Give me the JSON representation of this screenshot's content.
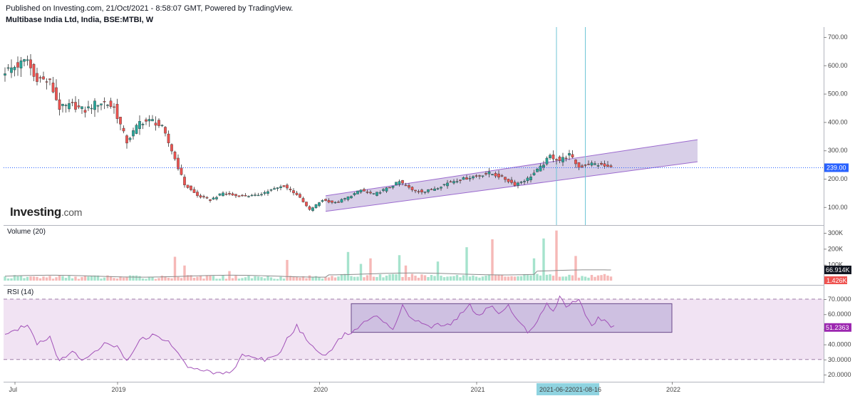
{
  "header": {
    "published": "Published on Investing.com, 21/Oct/2021 - 8:58:07 GMT, Powered by TradingView.",
    "symbol": "Multibase India Ltd, India, BSE:MTBI, W"
  },
  "logo": {
    "brand": "Investing",
    "suffix": ".com"
  },
  "panes": {
    "volume_label": "Volume (20)",
    "rsi_label": "RSI (14)"
  },
  "colors": {
    "up": "#26a69a",
    "down": "#ef5350",
    "channel_fill": "#b8a8d6",
    "channel_line": "#9c6bcf",
    "rsi_band": "#f1e3f3",
    "rsi_line": "#a252b8",
    "cursor_line": "#70c6d6",
    "price_line": "#2962ff",
    "volume_up": "#a6e3cd",
    "volume_down": "#f6b8b7",
    "volume_ma": "#8c8c8c"
  },
  "chart_data": [
    {
      "type": "candlestick",
      "title": "Multibase India Ltd, India, BSE:MTBI, W",
      "ylim": [
        60,
        720
      ],
      "y_ticks": [
        "700.00",
        "600.00",
        "500.00",
        "400.00",
        "300.00",
        "200.00",
        "100.00"
      ],
      "x_tick_labels": [
        "Jul",
        "2019",
        "2020",
        "2021",
        "2022"
      ],
      "last_price": "239.00",
      "anchors": [
        {
          "t": 0,
          "v": 580
        },
        {
          "t": 4,
          "v": 600
        },
        {
          "t": 7,
          "v": 620
        },
        {
          "t": 9,
          "v": 560
        },
        {
          "t": 14,
          "v": 540
        },
        {
          "t": 17,
          "v": 450
        },
        {
          "t": 21,
          "v": 460
        },
        {
          "t": 25,
          "v": 440
        },
        {
          "t": 28,
          "v": 465
        },
        {
          "t": 31,
          "v": 470
        },
        {
          "t": 34,
          "v": 450
        },
        {
          "t": 38,
          "v": 330
        },
        {
          "t": 42,
          "v": 400
        },
        {
          "t": 46,
          "v": 405
        },
        {
          "t": 49,
          "v": 380
        },
        {
          "t": 52,
          "v": 300
        },
        {
          "t": 56,
          "v": 180
        },
        {
          "t": 60,
          "v": 140
        },
        {
          "t": 64,
          "v": 125
        },
        {
          "t": 68,
          "v": 150
        },
        {
          "t": 72,
          "v": 140
        },
        {
          "t": 78,
          "v": 140
        },
        {
          "t": 83,
          "v": 160
        },
        {
          "t": 87,
          "v": 175
        },
        {
          "t": 91,
          "v": 145
        },
        {
          "t": 95,
          "v": 90
        },
        {
          "t": 99,
          "v": 125
        },
        {
          "t": 103,
          "v": 115
        },
        {
          "t": 107,
          "v": 135
        },
        {
          "t": 111,
          "v": 160
        },
        {
          "t": 115,
          "v": 145
        },
        {
          "t": 119,
          "v": 165
        },
        {
          "t": 123,
          "v": 190
        },
        {
          "t": 127,
          "v": 160
        },
        {
          "t": 131,
          "v": 155
        },
        {
          "t": 135,
          "v": 170
        },
        {
          "t": 139,
          "v": 190
        },
        {
          "t": 143,
          "v": 200
        },
        {
          "t": 147,
          "v": 210
        },
        {
          "t": 151,
          "v": 220
        },
        {
          "t": 155,
          "v": 205
        },
        {
          "t": 159,
          "v": 180
        },
        {
          "t": 163,
          "v": 200
        },
        {
          "t": 167,
          "v": 240
        },
        {
          "t": 170,
          "v": 280
        },
        {
          "t": 173,
          "v": 265
        },
        {
          "t": 176,
          "v": 285
        },
        {
          "t": 179,
          "v": 240
        },
        {
          "t": 182,
          "v": 255
        },
        {
          "t": 185,
          "v": 250
        },
        {
          "t": 189,
          "v": 239
        }
      ],
      "channel": {
        "lower": {
          "start": {
            "t": 100,
            "v": 85
          },
          "end": {
            "t": 216,
            "v": 260
          }
        },
        "upper": {
          "start": {
            "t": 100,
            "v": 140
          },
          "end": {
            "t": 216,
            "v": 338
          }
        }
      },
      "vertical_markers": [
        "2021-06-2",
        "2021-08-16"
      ]
    },
    {
      "type": "bar",
      "title": "Volume (20)",
      "y_ticks": [
        "300K",
        "200K",
        "100K"
      ],
      "ylim": [
        0,
        330000
      ],
      "ma_value": "66.914K",
      "last_volume": "1.426K",
      "spikes": [
        {
          "t": 53,
          "v": 150000
        },
        {
          "t": 56,
          "v": 95000
        },
        {
          "t": 70,
          "v": 60000
        },
        {
          "t": 88,
          "v": 130000
        },
        {
          "t": 107,
          "v": 180000
        },
        {
          "t": 111,
          "v": 105000
        },
        {
          "t": 114,
          "v": 140000
        },
        {
          "t": 123,
          "v": 160000
        },
        {
          "t": 125,
          "v": 95000
        },
        {
          "t": 135,
          "v": 120000
        },
        {
          "t": 144,
          "v": 210000
        },
        {
          "t": 152,
          "v": 260000
        },
        {
          "t": 165,
          "v": 140000
        },
        {
          "t": 168,
          "v": 265000
        },
        {
          "t": 172,
          "v": 315000
        },
        {
          "t": 178,
          "v": 155000
        }
      ]
    },
    {
      "type": "line",
      "title": "RSI (14)",
      "ylim": [
        18,
        76
      ],
      "y_ticks": [
        "70.0000",
        "60.0000",
        "50.0000",
        "40.0000",
        "30.0000",
        "20.0000"
      ],
      "band": [
        30,
        70
      ],
      "last_value": "51.2363",
      "highlight_box": {
        "start": {
          "t": 108,
          "v": 48
        },
        "end": {
          "t": 208,
          "v": 67
        }
      },
      "anchors": [
        {
          "t": 0,
          "v": 47
        },
        {
          "t": 4,
          "v": 50
        },
        {
          "t": 7,
          "v": 54
        },
        {
          "t": 10,
          "v": 41
        },
        {
          "t": 14,
          "v": 45
        },
        {
          "t": 17,
          "v": 29
        },
        {
          "t": 21,
          "v": 35
        },
        {
          "t": 24,
          "v": 30
        },
        {
          "t": 28,
          "v": 36
        },
        {
          "t": 31,
          "v": 40
        },
        {
          "t": 35,
          "v": 38
        },
        {
          "t": 38,
          "v": 30
        },
        {
          "t": 42,
          "v": 43
        },
        {
          "t": 46,
          "v": 46
        },
        {
          "t": 50,
          "v": 43
        },
        {
          "t": 53,
          "v": 38
        },
        {
          "t": 56,
          "v": 27
        },
        {
          "t": 60,
          "v": 23
        },
        {
          "t": 64,
          "v": 22
        },
        {
          "t": 68,
          "v": 21
        },
        {
          "t": 71,
          "v": 22
        },
        {
          "t": 74,
          "v": 34
        },
        {
          "t": 77,
          "v": 31
        },
        {
          "t": 81,
          "v": 30
        },
        {
          "t": 85,
          "v": 32
        },
        {
          "t": 88,
          "v": 44
        },
        {
          "t": 91,
          "v": 52
        },
        {
          "t": 94,
          "v": 43
        },
        {
          "t": 97,
          "v": 37
        },
        {
          "t": 100,
          "v": 33
        },
        {
          "t": 103,
          "v": 40
        },
        {
          "t": 106,
          "v": 47
        },
        {
          "t": 109,
          "v": 49
        },
        {
          "t": 112,
          "v": 54
        },
        {
          "t": 115,
          "v": 60
        },
        {
          "t": 118,
          "v": 56
        },
        {
          "t": 121,
          "v": 50
        },
        {
          "t": 124,
          "v": 65
        },
        {
          "t": 127,
          "v": 57
        },
        {
          "t": 130,
          "v": 53
        },
        {
          "t": 133,
          "v": 52
        },
        {
          "t": 136,
          "v": 53
        },
        {
          "t": 139,
          "v": 53
        },
        {
          "t": 142,
          "v": 60
        },
        {
          "t": 145,
          "v": 66
        },
        {
          "t": 148,
          "v": 58
        },
        {
          "t": 151,
          "v": 66
        },
        {
          "t": 154,
          "v": 60
        },
        {
          "t": 157,
          "v": 66
        },
        {
          "t": 160,
          "v": 55
        },
        {
          "t": 163,
          "v": 49
        },
        {
          "t": 166,
          "v": 55
        },
        {
          "t": 169,
          "v": 68
        },
        {
          "t": 171,
          "v": 62
        },
        {
          "t": 173,
          "v": 72
        },
        {
          "t": 175,
          "v": 66
        },
        {
          "t": 177,
          "v": 68
        },
        {
          "t": 179,
          "v": 70
        },
        {
          "t": 181,
          "v": 60
        },
        {
          "t": 183,
          "v": 53
        },
        {
          "t": 185,
          "v": 57
        },
        {
          "t": 188,
          "v": 54
        },
        {
          "t": 190,
          "v": 51
        }
      ]
    }
  ]
}
